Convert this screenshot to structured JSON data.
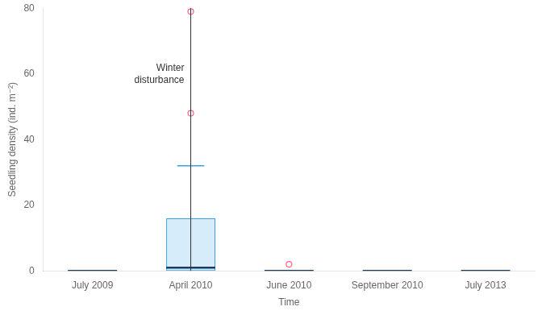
{
  "chart_data": {
    "type": "box",
    "xlabel": "Time",
    "ylabel": "Seedling density (ind. m⁻²)",
    "categories": [
      "July 2009",
      "April 2010",
      "June 2010",
      "September 2010",
      "July 2013"
    ],
    "boxes": [
      {
        "q1": 0,
        "median": 0,
        "q3": 0,
        "whisker_low": 0,
        "whisker_high": 0,
        "outliers": [],
        "line_style": "solid"
      },
      {
        "q1": 0,
        "median": 1,
        "q3": 16,
        "whisker_low": 0,
        "whisker_high": 32,
        "outliers": [
          48,
          79
        ],
        "line_style": "dashed"
      },
      {
        "q1": 0,
        "median": 0,
        "q3": 0,
        "whisker_low": 0,
        "whisker_high": 0,
        "outliers": [
          2
        ],
        "line_style": "solid"
      },
      {
        "q1": 0,
        "median": 0,
        "q3": 0,
        "whisker_low": 0,
        "whisker_high": 0,
        "outliers": [],
        "line_style": "solid"
      },
      {
        "q1": 0,
        "median": 0,
        "q3": 0,
        "whisker_low": 0,
        "whisker_high": 0,
        "outliers": [],
        "line_style": "solid"
      }
    ],
    "ylim": [
      0,
      80
    ],
    "yticks": [
      0,
      20,
      40,
      60,
      80
    ],
    "grid": false,
    "annotations": [
      {
        "type": "vline",
        "x": "April 2010",
        "y": 60,
        "text": "Winter\ndisturbance"
      }
    ]
  }
}
